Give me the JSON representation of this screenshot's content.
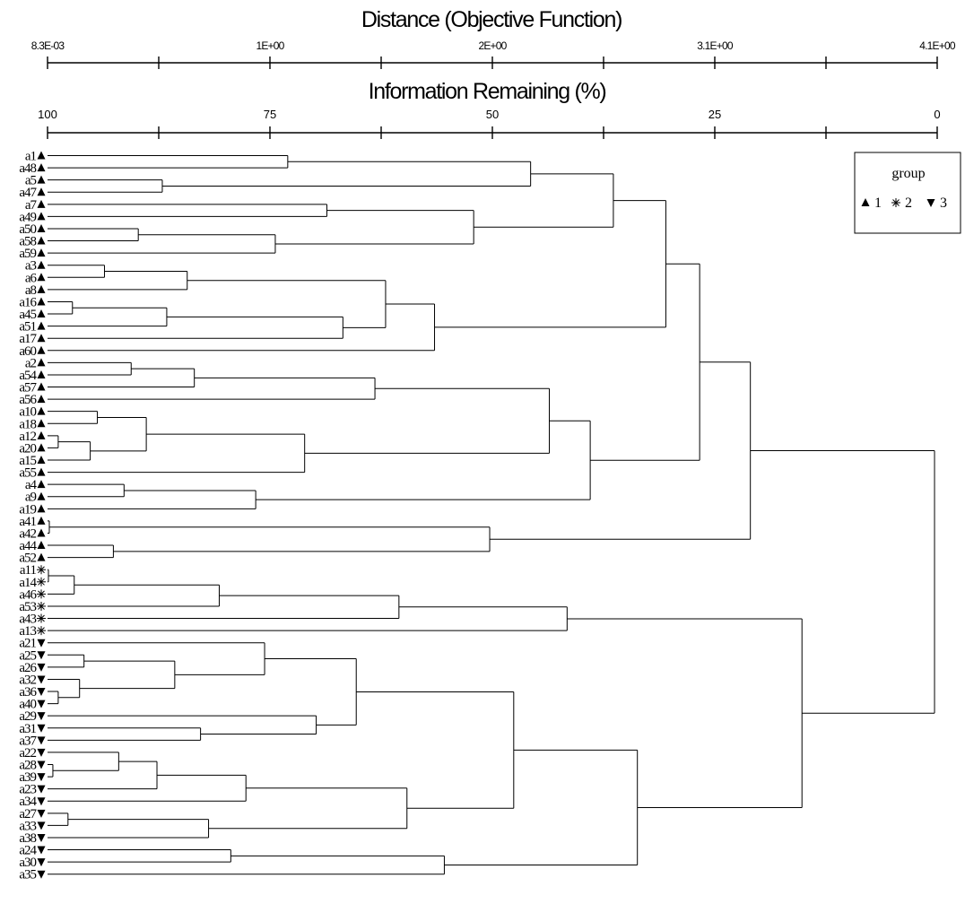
{
  "chart_data": {
    "type": "dendrogram",
    "top_axis": {
      "title": "Distance (Objective Function)",
      "tick_labels": [
        "8.3E-03",
        "1E+00",
        "2E+00",
        "3.1E+00",
        "4.1E+00"
      ]
    },
    "bottom_axis": {
      "title": "Information Remaining (%)",
      "range": [
        100,
        0
      ],
      "tick_labels": [
        "100",
        "75",
        "50",
        "25",
        "0"
      ],
      "minor_ticks": [
        87.5,
        62.5,
        37.5,
        12.5
      ]
    },
    "legend": {
      "title": "group",
      "placement": "top-right",
      "entries": [
        {
          "symbol": "triangle-up",
          "label": "1"
        },
        {
          "symbol": "asterisk",
          "label": "2"
        },
        {
          "symbol": "triangle-down",
          "label": "3"
        }
      ]
    },
    "leaves": [
      {
        "label": "a1",
        "group": 1
      },
      {
        "label": "a48",
        "group": 1
      },
      {
        "label": "a5",
        "group": 1
      },
      {
        "label": "a47",
        "group": 1
      },
      {
        "label": "a7",
        "group": 1
      },
      {
        "label": "a49",
        "group": 1
      },
      {
        "label": "a50",
        "group": 1
      },
      {
        "label": "a58",
        "group": 1
      },
      {
        "label": "a59",
        "group": 1
      },
      {
        "label": "a3",
        "group": 1
      },
      {
        "label": "a6",
        "group": 1
      },
      {
        "label": "a8",
        "group": 1
      },
      {
        "label": "a16",
        "group": 1
      },
      {
        "label": "a45",
        "group": 1
      },
      {
        "label": "a51",
        "group": 1
      },
      {
        "label": "a17",
        "group": 1
      },
      {
        "label": "a60",
        "group": 1
      },
      {
        "label": "a2",
        "group": 1
      },
      {
        "label": "a54",
        "group": 1
      },
      {
        "label": "a57",
        "group": 1
      },
      {
        "label": "a56",
        "group": 1
      },
      {
        "label": "a10",
        "group": 1
      },
      {
        "label": "a18",
        "group": 1
      },
      {
        "label": "a12",
        "group": 1
      },
      {
        "label": "a20",
        "group": 1
      },
      {
        "label": "a15",
        "group": 1
      },
      {
        "label": "a55",
        "group": 1
      },
      {
        "label": "a4",
        "group": 1
      },
      {
        "label": "a9",
        "group": 1
      },
      {
        "label": "a19",
        "group": 1
      },
      {
        "label": "a41",
        "group": 1
      },
      {
        "label": "a42",
        "group": 1
      },
      {
        "label": "a44",
        "group": 1
      },
      {
        "label": "a52",
        "group": 1
      },
      {
        "label": "a11",
        "group": 2
      },
      {
        "label": "a14",
        "group": 2
      },
      {
        "label": "a46",
        "group": 2
      },
      {
        "label": "a53",
        "group": 2
      },
      {
        "label": "a43",
        "group": 2
      },
      {
        "label": "a13",
        "group": 2
      },
      {
        "label": "a21",
        "group": 3
      },
      {
        "label": "a25",
        "group": 3
      },
      {
        "label": "a26",
        "group": 3
      },
      {
        "label": "a32",
        "group": 3
      },
      {
        "label": "a36",
        "group": 3
      },
      {
        "label": "a40",
        "group": 3
      },
      {
        "label": "a29",
        "group": 3
      },
      {
        "label": "a31",
        "group": 3
      },
      {
        "label": "a37",
        "group": 3
      },
      {
        "label": "a22",
        "group": 3
      },
      {
        "label": "a28",
        "group": 3
      },
      {
        "label": "a39",
        "group": 3
      },
      {
        "label": "a23",
        "group": 3
      },
      {
        "label": "a34",
        "group": 3
      },
      {
        "label": "a27",
        "group": 3
      },
      {
        "label": "a33",
        "group": 3
      },
      {
        "label": "a38",
        "group": 3
      },
      {
        "label": "a24",
        "group": 3
      },
      {
        "label": "a30",
        "group": 3
      },
      {
        "label": "a35",
        "group": 3
      }
    ],
    "merges_info_remaining_pct": [
      {
        "a": "a1",
        "b": "a48",
        "h": 73.0
      },
      {
        "a": "a5",
        "b": "a47",
        "h": 87.1
      },
      {
        "a": "a1|a48",
        "b": "a5|a47",
        "h": 45.7
      },
      {
        "a": "a50",
        "b": "a58",
        "h": 89.8
      },
      {
        "a": "a50|a58",
        "b": "a59",
        "h": 74.4
      },
      {
        "a": "a7",
        "b": "a49",
        "h": 68.6
      },
      {
        "a": "a7|a49",
        "b": "a50|a58|a59",
        "h": 52.1
      },
      {
        "a": "a1-a47",
        "b": "a7-a59",
        "h": 36.4
      },
      {
        "a": "a3",
        "b": "a6",
        "h": 93.6
      },
      {
        "a": "a3|a6",
        "b": "a8",
        "h": 84.3
      },
      {
        "a": "a16",
        "b": "a45",
        "h": 97.2
      },
      {
        "a": "a16|a45",
        "b": "a51",
        "h": 86.6
      },
      {
        "a": "a16|a45|a51",
        "b": "a17",
        "h": 66.8
      },
      {
        "a": "a3|a6|a8",
        "b": "a16-a17",
        "h": 62.0
      },
      {
        "a": "a3-a17",
        "b": "a60",
        "h": 56.5
      },
      {
        "a": "a1-a59",
        "b": "a3-a60",
        "h": 30.5
      },
      {
        "a": "a2",
        "b": "a54",
        "h": 90.6
      },
      {
        "a": "a2|a54",
        "b": "a57",
        "h": 83.5
      },
      {
        "a": "a2|a54|a57",
        "b": "a56",
        "h": 63.2
      },
      {
        "a": "a10",
        "b": "a18",
        "h": 94.4
      },
      {
        "a": "a12",
        "b": "a20",
        "h": 98.8
      },
      {
        "a": "a12|a20",
        "b": "a15",
        "h": 95.2
      },
      {
        "a": "a10|a18",
        "b": "a12|a20|a15",
        "h": 88.9
      },
      {
        "a": "a10-a15",
        "b": "a55",
        "h": 71.1
      },
      {
        "a": "a2-a56",
        "b": "a10-a55",
        "h": 43.6
      },
      {
        "a": "a4",
        "b": "a9",
        "h": 91.4
      },
      {
        "a": "a4|a9",
        "b": "a19",
        "h": 76.6
      },
      {
        "a": "a2-a55",
        "b": "a4-a19",
        "h": 39.0
      },
      {
        "a": "a1-a60",
        "b": "a2-a19",
        "h": 26.7
      },
      {
        "a": "a41",
        "b": "a42",
        "h": 99.8
      },
      {
        "a": "a44",
        "b": "a52",
        "h": 92.6
      },
      {
        "a": "a41|a42",
        "b": "a44|a52",
        "h": 50.3
      },
      {
        "a": "a1-a19",
        "b": "a41-a52",
        "h": 21.0
      },
      {
        "a": "a11",
        "b": "a14",
        "h": 99.9
      },
      {
        "a": "a11|a14",
        "b": "a46",
        "h": 97.0
      },
      {
        "a": "a11|a14|a46",
        "b": "a53",
        "h": 80.7
      },
      {
        "a": "a11-a53",
        "b": "a43",
        "h": 60.5
      },
      {
        "a": "a11-a43",
        "b": "a13",
        "h": 41.6
      },
      {
        "a": "a25",
        "b": "a26",
        "h": 95.9
      },
      {
        "a": "a36",
        "b": "a40",
        "h": 98.8
      },
      {
        "a": "a32",
        "b": "a36|a40",
        "h": 96.4
      },
      {
        "a": "a25|a26",
        "b": "a32|a36|a40",
        "h": 85.7
      },
      {
        "a": "a21",
        "b": "a25-a40",
        "h": 75.6
      },
      {
        "a": "a31",
        "b": "a37",
        "h": 82.8
      },
      {
        "a": "a29",
        "b": "a31|a37",
        "h": 69.8
      },
      {
        "a": "a21-a40",
        "b": "a29-a37",
        "h": 65.3
      },
      {
        "a": "a28",
        "b": "a39",
        "h": 99.4
      },
      {
        "a": "a22",
        "b": "a28|a39",
        "h": 92.0
      },
      {
        "a": "a22-a39",
        "b": "a23",
        "h": 87.7
      },
      {
        "a": "a22-a23",
        "b": "a34",
        "h": 77.7
      },
      {
        "a": "a27",
        "b": "a33",
        "h": 97.7
      },
      {
        "a": "a27|a33",
        "b": "a38",
        "h": 81.9
      },
      {
        "a": "a22-a34",
        "b": "a27-a38",
        "h": 59.6
      },
      {
        "a": "a21-a37",
        "b": "a22-a38",
        "h": 47.6
      },
      {
        "a": "a24",
        "b": "a30",
        "h": 79.4
      },
      {
        "a": "a24|a30",
        "b": "a35",
        "h": 55.4
      },
      {
        "a": "a21-a38",
        "b": "a24-a35",
        "h": 33.7
      },
      {
        "a": "a11-a13",
        "b": "a21-a35",
        "h": 15.2
      },
      {
        "a": "a1-a52",
        "b": "a11-a35",
        "h": 0.3
      }
    ],
    "grid": false
  }
}
